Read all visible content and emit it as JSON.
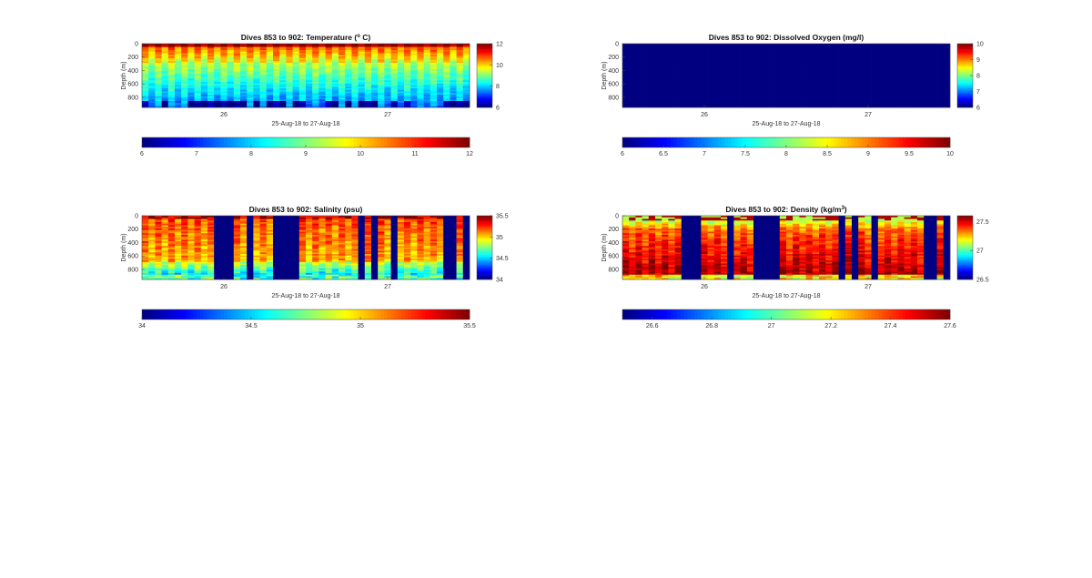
{
  "window": {
    "title": ""
  },
  "chart_data": [
    {
      "type": "heatmap",
      "title": "Dives 853 to 902: Temperature (",
      "title_sup": "o",
      "title_suffix": " C)",
      "xlabel": "25-Aug-18 to 27-Aug-18",
      "ylabel": "Depth (m)",
      "x_ticks": [
        "26",
        "27"
      ],
      "y_ticks": [
        "0",
        "200",
        "400",
        "600",
        "800"
      ],
      "ylim": [
        0,
        950
      ],
      "xlim_days": [
        25.5,
        27.5
      ],
      "n_profiles": 50,
      "pattern": "temperature",
      "colormap": "jet",
      "clim": [
        6,
        12
      ],
      "colorbar_ticks": [
        "12",
        "10",
        "8",
        "6"
      ],
      "colorbar_tick_values": [
        12,
        10,
        8,
        6
      ],
      "hcolorbar_ticks": [
        "6",
        "7",
        "8",
        "9",
        "10",
        "11",
        "12"
      ],
      "hcolorbar_tick_values": [
        6,
        7,
        8,
        9,
        10,
        11,
        12
      ],
      "description_values": {
        "surface": 10.8,
        "mid": 9.2,
        "deep": 7.8
      }
    },
    {
      "type": "heatmap",
      "title": "Dives 853 to 902: Dissolved Oxygen (mg/l)",
      "title_sup": "",
      "title_suffix": "",
      "xlabel": "25-Aug-18 to 27-Aug-18",
      "ylabel": "Depth (m)",
      "x_ticks": [
        "26",
        "27"
      ],
      "y_ticks": [
        "0",
        "200",
        "400",
        "600",
        "800"
      ],
      "ylim": [
        0,
        950
      ],
      "xlim_days": [
        25.5,
        27.5
      ],
      "n_profiles": 50,
      "pattern": "uniform",
      "colormap": "jet",
      "clim": [
        6,
        10
      ],
      "colorbar_ticks": [
        "10",
        "9",
        "8",
        "7",
        "6"
      ],
      "colorbar_tick_values": [
        10,
        9,
        8,
        7,
        6
      ],
      "hcolorbar_ticks": [
        "6",
        "6.5",
        "7",
        "7.5",
        "8",
        "8.5",
        "9",
        "9.5",
        "10"
      ],
      "hcolorbar_tick_values": [
        6,
        6.5,
        7,
        7.5,
        8,
        8.5,
        9,
        9.5,
        10
      ],
      "description_values": {
        "all": 6
      }
    },
    {
      "type": "heatmap",
      "title": "Dives 853 to 902: Salinity (psu)",
      "title_sup": "",
      "title_suffix": "",
      "xlabel": "25-Aug-18 to 27-Aug-18",
      "ylabel": "Depth (m)",
      "x_ticks": [
        "26",
        "27"
      ],
      "y_ticks": [
        "0",
        "200",
        "400",
        "600",
        "800"
      ],
      "ylim": [
        0,
        950
      ],
      "xlim_days": [
        25.5,
        27.5
      ],
      "n_profiles": 50,
      "pattern": "salinity",
      "colormap": "jet",
      "clim": [
        34,
        35.5
      ],
      "colorbar_ticks": [
        "35.5",
        "35",
        "34.5",
        "34"
      ],
      "colorbar_tick_values": [
        35.5,
        35,
        34.5,
        34
      ],
      "hcolorbar_ticks": [
        "34",
        "34.5",
        "35",
        "35.5"
      ],
      "hcolorbar_tick_values": [
        34,
        34.5,
        35,
        35.5
      ],
      "gap_profiles": [
        11,
        12,
        13,
        16,
        20,
        21,
        22,
        23,
        33,
        35,
        38,
        46,
        47,
        49
      ],
      "description_values": {
        "surface": 35.45,
        "mid": 35.22,
        "deep": 34.85
      }
    },
    {
      "type": "heatmap",
      "title": "Dives 853 to 902: Density (kg/m",
      "title_sup": "3",
      "title_suffix": ")",
      "xlabel": "25-Aug-18 to 27-Aug-18",
      "ylabel": "Depth (m)",
      "x_ticks": [
        "26",
        "27"
      ],
      "y_ticks": [
        "0",
        "200",
        "400",
        "600",
        "800"
      ],
      "ylim": [
        0,
        950
      ],
      "xlim_days": [
        25.5,
        27.5
      ],
      "n_profiles": 50,
      "pattern": "density",
      "colormap": "jet",
      "clim": [
        26.5,
        27.6
      ],
      "colorbar_ticks": [
        "27.5",
        "27",
        "26.5"
      ],
      "colorbar_tick_values": [
        27.5,
        27,
        26.5
      ],
      "hcolorbar_ticks": [
        "26.6",
        "26.8",
        "27",
        "27.2",
        "27.4",
        "27.6"
      ],
      "hcolorbar_tick_values": [
        26.6,
        26.8,
        27,
        27.2,
        27.4,
        27.6
      ],
      "gap_profiles": [
        9,
        10,
        11,
        16,
        20,
        21,
        22,
        23,
        33,
        35,
        38,
        46,
        47,
        49
      ],
      "description_values": {
        "surface": 27.0,
        "mid": 27.35,
        "deep": 27.55
      }
    }
  ]
}
